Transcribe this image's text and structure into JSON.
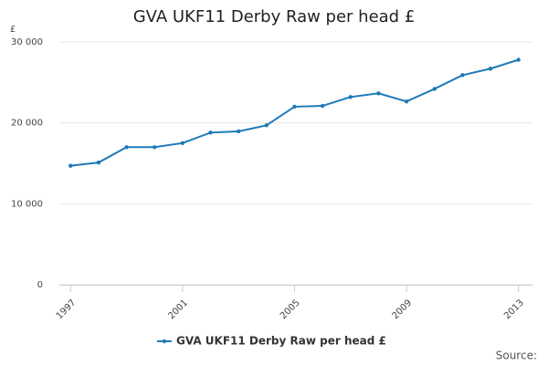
{
  "chart_data": {
    "type": "line",
    "title": "GVA UKF11 Derby Raw per head £",
    "y_unit": "£",
    "source": "Source:",
    "x": [
      1997,
      1998,
      1999,
      2000,
      2001,
      2002,
      2003,
      2004,
      2005,
      2006,
      2007,
      2008,
      2009,
      2010,
      2011,
      2012,
      2013
    ],
    "series": [
      {
        "name": "GVA UKF11 Derby Raw per head £",
        "color": "#1f7ab8",
        "values": [
          14700,
          15100,
          17000,
          17000,
          17500,
          18800,
          18950,
          19700,
          22000,
          22100,
          23200,
          23650,
          22650,
          24200,
          25900,
          26700,
          27800
        ]
      }
    ],
    "xlim": [
      1996.6,
      2013.5
    ],
    "xticks": [
      1997,
      2001,
      2005,
      2009,
      2013
    ],
    "ylim": [
      0,
      30000
    ],
    "yticks": [
      0,
      {
        "value": 10000,
        "label": "10 000"
      },
      {
        "value": 20000,
        "label": "20 000"
      },
      {
        "value": 30000,
        "label": "30 000"
      }
    ],
    "grid": true
  }
}
